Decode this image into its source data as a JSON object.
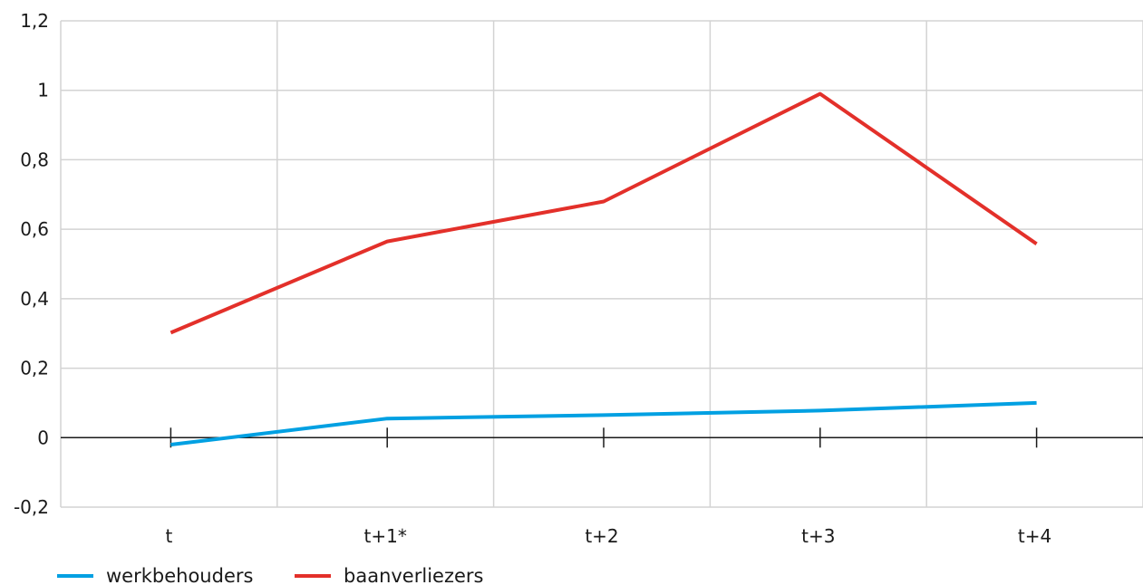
{
  "chart_data": {
    "type": "line",
    "categories": [
      "t",
      "t+1*",
      "t+2",
      "t+3",
      "t+4"
    ],
    "series": [
      {
        "name": "werkbehouders",
        "color": "#00a0e2",
        "values": [
          -0.02,
          0.055,
          0.065,
          0.078,
          0.1
        ]
      },
      {
        "name": "baanverliezers",
        "color": "#e3302a",
        "values": [
          0.302,
          0.565,
          0.68,
          0.99,
          0.558
        ]
      }
    ],
    "ylim": [
      -0.2,
      1.2
    ],
    "yticks": [
      -0.2,
      0,
      0.2,
      0.4,
      0.6,
      0.8,
      1,
      1.2
    ],
    "ytick_labels": [
      "-0,2",
      "0",
      "0,2",
      "0,4",
      "0,6",
      "0,8",
      "1",
      "1,2"
    ],
    "grid": true,
    "legend_position": "bottom-left",
    "colors": {
      "grid": "#d3d3d3",
      "axis": "#1a1a1a"
    }
  }
}
